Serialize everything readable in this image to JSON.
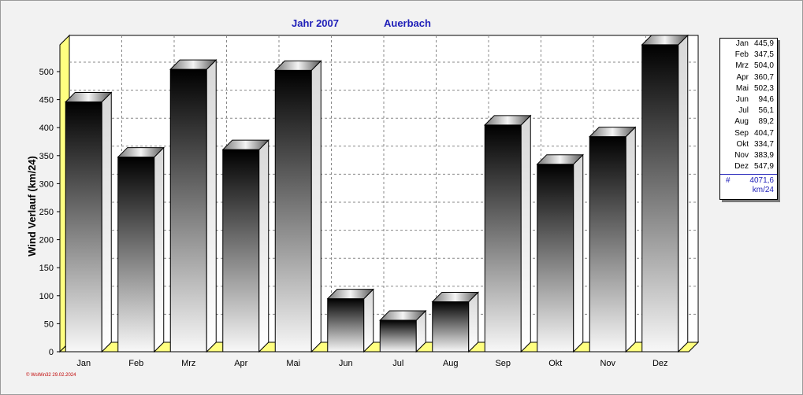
{
  "titles": {
    "year": "Jahr  2007",
    "station": "Auerbach"
  },
  "footer": "© WsWin32  29.02.2024",
  "chart_data": {
    "type": "bar",
    "title": "Jahr  2007    Auerbach",
    "ylabel": "Wind Verlauf  (km/24)",
    "xlabel": "",
    "ylim": [
      0,
      560
    ],
    "yticks": [
      0,
      50,
      100,
      150,
      200,
      250,
      300,
      350,
      400,
      450,
      500
    ],
    "categories": [
      "Jan",
      "Feb",
      "Mrz",
      "Apr",
      "Mai",
      "Jun",
      "Jul",
      "Aug",
      "Sep",
      "Okt",
      "Nov",
      "Dez"
    ],
    "values": [
      445.9,
      347.5,
      504.0,
      360.7,
      502.3,
      94.6,
      56.1,
      89.2,
      404.7,
      334.7,
      383.9,
      547.9
    ],
    "grid": true,
    "legend_position": "right"
  },
  "legend": {
    "rows": [
      {
        "month": "Jan",
        "value": "445,9"
      },
      {
        "month": "Feb",
        "value": "347,5"
      },
      {
        "month": "Mrz",
        "value": "504,0"
      },
      {
        "month": "Apr",
        "value": "360,7"
      },
      {
        "month": "Mai",
        "value": "502,3"
      },
      {
        "month": "Jun",
        "value": "94,6"
      },
      {
        "month": "Jul",
        "value": "56,1"
      },
      {
        "month": "Aug",
        "value": "89,2"
      },
      {
        "month": "Sep",
        "value": "404,7"
      },
      {
        "month": "Okt",
        "value": "334,7"
      },
      {
        "month": "Nov",
        "value": "383,9"
      },
      {
        "month": "Dez",
        "value": "547,9"
      }
    ],
    "total_symbol": "#",
    "total_value": "4071,6",
    "total_unit": "km/24"
  },
  "colors": {
    "title": "#1f1fb8",
    "floor": "#ffff80",
    "footer": "#c00000"
  }
}
